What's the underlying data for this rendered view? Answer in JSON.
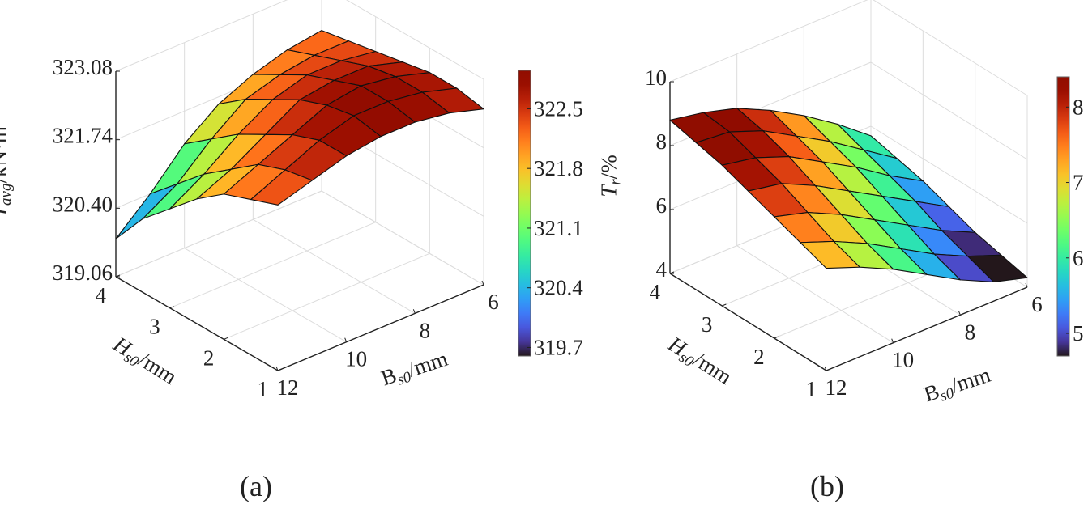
{
  "chart_data": [
    {
      "type": "surface",
      "caption": "(a)",
      "x_name": "B",
      "y_name": "H",
      "x": [
        6,
        7,
        8,
        9,
        10,
        11,
        12
      ],
      "y": [
        1,
        1.5,
        2,
        2.5,
        3,
        3.5,
        4
      ],
      "z": [
        [
          322.5,
          322.7,
          322.8,
          322.8,
          322.7,
          322.5,
          322.3
        ],
        [
          322.6,
          322.8,
          322.9,
          322.9,
          322.7,
          322.4,
          322.1
        ],
        [
          322.6,
          322.8,
          322.9,
          322.8,
          322.5,
          322.2,
          321.9
        ],
        [
          322.5,
          322.7,
          322.7,
          322.6,
          322.2,
          321.8,
          321.5
        ],
        [
          322.4,
          322.5,
          322.5,
          322.3,
          321.9,
          321.4,
          321.0
        ],
        [
          322.3,
          322.3,
          322.2,
          322.0,
          321.5,
          320.9,
          320.5
        ],
        [
          322.2,
          322.1,
          321.9,
          321.6,
          321.1,
          320.4,
          319.8
        ]
      ],
      "xlim": [
        6,
        12
      ],
      "ylim": [
        1,
        4
      ],
      "zlim": [
        319.06,
        323.08
      ],
      "xticks": [
        "6",
        "8",
        "10",
        "12"
      ],
      "xtick_values": [
        6,
        8,
        10,
        12
      ],
      "yticks": [
        "1",
        "2",
        "3",
        "4"
      ],
      "ytick_values": [
        1,
        2,
        3,
        4
      ],
      "zticks": [
        "319.06",
        "320.40",
        "321.74",
        "323.08"
      ],
      "ztick_values": [
        319.06,
        320.4,
        321.74,
        323.08
      ],
      "xlabel": {
        "main": "B",
        "sub": "s0",
        "rest": "/mm"
      },
      "ylabel": {
        "main": "H",
        "sub": "s0",
        "rest": "/mm"
      },
      "zlabel": {
        "main": "T",
        "sub": "avg",
        "rest": "/kN·m"
      },
      "colorbar": {
        "range": [
          319.6,
          322.95
        ],
        "ticks": [
          "319.7",
          "320.4",
          "321.1",
          "321.8",
          "322.5"
        ],
        "tick_values": [
          319.7,
          320.4,
          321.1,
          321.8,
          322.5
        ]
      },
      "colormap": "turbo",
      "grid": true
    },
    {
      "type": "surface",
      "caption": "(b)",
      "x_name": "B",
      "y_name": "H",
      "x": [
        6,
        7,
        8,
        9,
        10,
        11,
        12
      ],
      "y": [
        1,
        1.5,
        2,
        2.5,
        3,
        3.5,
        4
      ],
      "z": [
        [
          4.3,
          4.6,
          5.1,
          5.7,
          6.3,
          6.8,
          7.2
        ],
        [
          4.5,
          4.9,
          5.4,
          6.0,
          6.6,
          7.1,
          7.5
        ],
        [
          4.7,
          5.2,
          5.8,
          6.4,
          7.0,
          7.5,
          7.8
        ],
        [
          5.0,
          5.6,
          6.2,
          6.8,
          7.4,
          7.9,
          8.1
        ],
        [
          5.3,
          5.9,
          6.6,
          7.2,
          7.8,
          8.2,
          8.4
        ],
        [
          5.5,
          6.2,
          6.9,
          7.5,
          8.1,
          8.5,
          8.6
        ],
        [
          5.7,
          6.5,
          7.2,
          7.8,
          8.3,
          8.6,
          8.8
        ]
      ],
      "xlim": [
        6,
        12
      ],
      "ylim": [
        1,
        4
      ],
      "zlim": [
        4,
        10
      ],
      "xticks": [
        "6",
        "8",
        "10",
        "12"
      ],
      "xtick_values": [
        6,
        8,
        10,
        12
      ],
      "yticks": [
        "1",
        "2",
        "3",
        "4"
      ],
      "ytick_values": [
        1,
        2,
        3,
        4
      ],
      "zticks": [
        "4",
        "6",
        "8",
        "10"
      ],
      "ztick_values": [
        4,
        6,
        8,
        10
      ],
      "xlabel": {
        "main": "B",
        "sub": "s0",
        "rest": "/mm"
      },
      "ylabel": {
        "main": "H",
        "sub": "s0",
        "rest": "/mm"
      },
      "zlabel": {
        "main": "T",
        "sub": "r",
        "rest": "/%"
      },
      "colorbar": {
        "range": [
          4.7,
          8.4
        ],
        "ticks": [
          "5",
          "6",
          "7",
          "8"
        ],
        "tick_values": [
          5,
          6,
          7,
          8
        ]
      },
      "colormap": "turbo",
      "grid": true
    }
  ]
}
